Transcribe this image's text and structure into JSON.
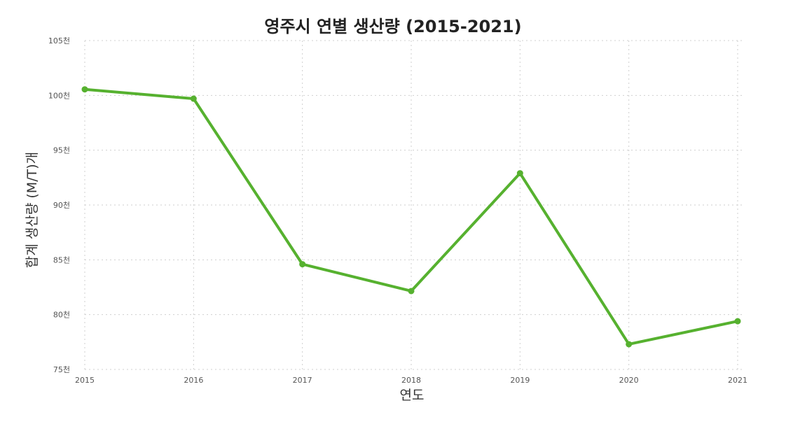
{
  "chart_data": {
    "type": "line",
    "title": "영주시 연별 생산량 (2015-2021)",
    "xlabel": "연도",
    "ylabel": "합계 생산량 (M/T)개",
    "x": [
      "2015",
      "2016",
      "2017",
      "2018",
      "2019",
      "2020",
      "2021"
    ],
    "series": [
      {
        "values": [
          100550,
          99700,
          84600,
          82150,
          92900,
          77300,
          79400
        ]
      }
    ],
    "ylim": [
      75000,
      105000
    ],
    "yticks": [
      75000,
      80000,
      85000,
      90000,
      95000,
      100000,
      105000
    ],
    "ytick_labels": [
      "75천",
      "80천",
      "85천",
      "90천",
      "95천",
      "100천",
      "105천"
    ],
    "grid": true,
    "line_color": "#56b12f",
    "marker": "circle"
  }
}
